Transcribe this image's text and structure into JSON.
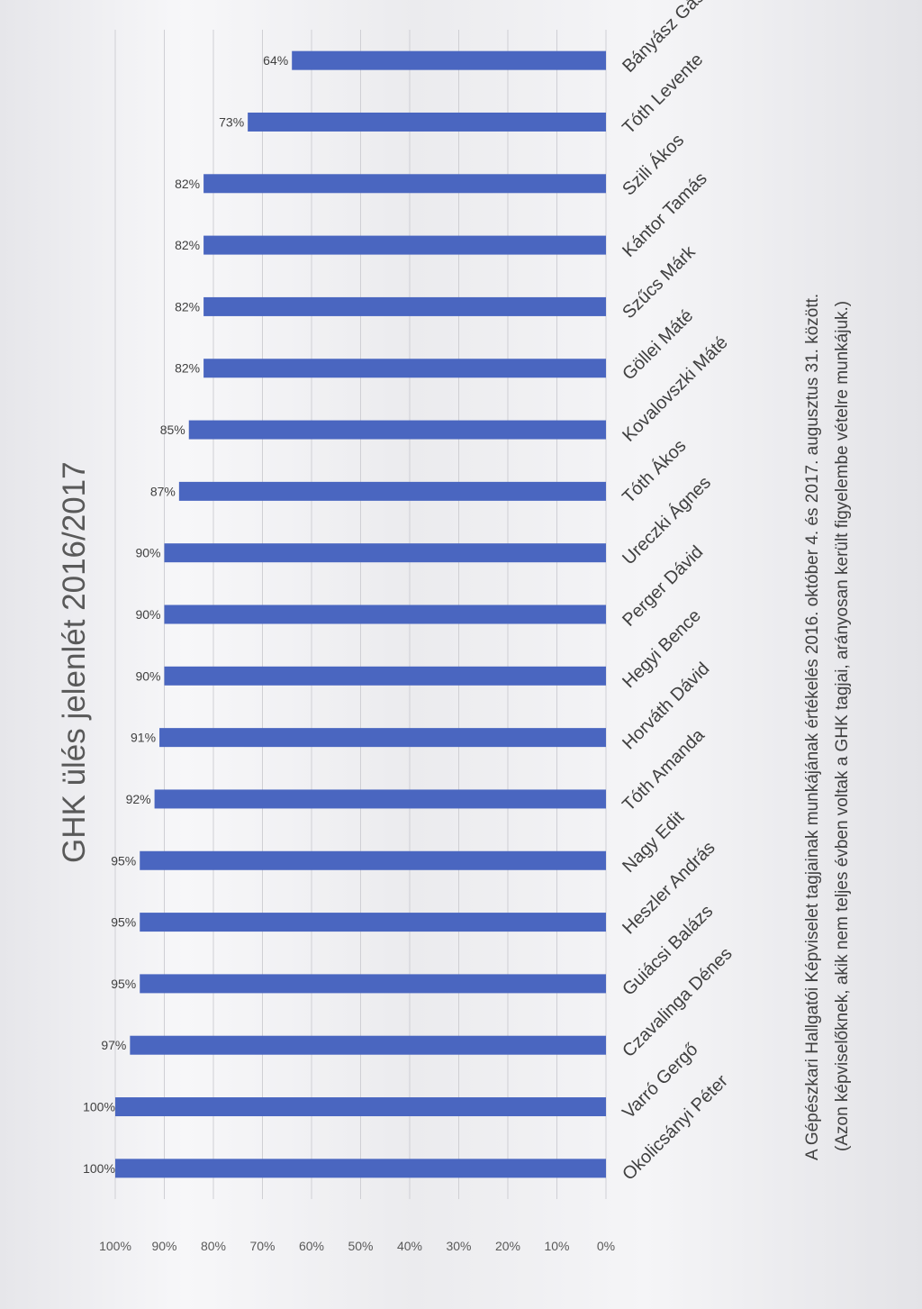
{
  "chart_data": {
    "type": "bar",
    "title": "GHK ülés jelenlét 2016/2017",
    "categories": [
      "Okolicsányi Péter",
      "Varró Gergő",
      "Czavalinga Dénes",
      "Guiácsi Balázs",
      "Heszler András",
      "Nagy Edit",
      "Tóth Amanda",
      "Horváth Dávid",
      "Hegyi Bence",
      "Perger Dávid",
      "Ureczki Ágnes",
      "Tóth Ákos",
      "Kovalovszki Máté",
      "Göllei Máté",
      "Szűcs Márk",
      "Kántor Tamás",
      "Szili Ákos",
      "Tóth Levente",
      "Bányász Gáspár"
    ],
    "values": [
      100,
      100,
      97,
      95,
      95,
      95,
      92,
      91,
      90,
      90,
      90,
      87,
      85,
      82,
      82,
      82,
      82,
      73,
      64
    ],
    "data_labels": [
      "100%",
      "100%",
      "97%",
      "95%",
      "95%",
      "95%",
      "92%",
      "91%",
      "90%",
      "90%",
      "90%",
      "87%",
      "85%",
      "82%",
      "82%",
      "82%",
      "82%",
      "73%",
      "64%"
    ],
    "y_ticks": [
      "0%",
      "10%",
      "20%",
      "30%",
      "40%",
      "50%",
      "60%",
      "70%",
      "80%",
      "90%",
      "100%"
    ],
    "ylim": [
      0,
      100
    ],
    "grid": true,
    "bar_color": "#4a66c0",
    "footnote_lines": [
      "A Gépészkari Hallgatói Képviselet tagjainak munkájának értékelés 2016. október 4. és 2017. augusztus 31. között.",
      "(Azon képviselőknek, akik nem teljes évben voltak a GHK tagjai, arányosan került figyelembe vételre munkájuk.)"
    ]
  }
}
